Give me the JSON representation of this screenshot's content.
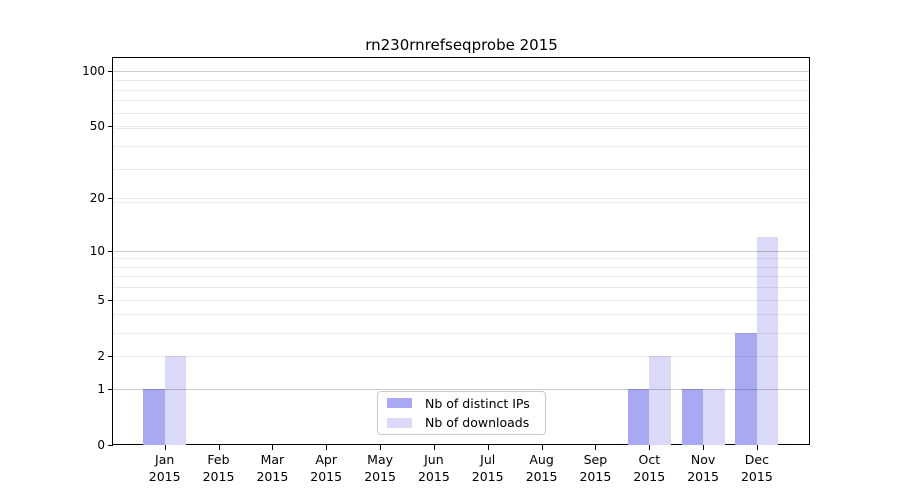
{
  "title": "rn230rnrefseqprobe 2015",
  "chart_data": {
    "type": "bar",
    "title": "rn230rnrefseqprobe 2015",
    "categories": [
      "Jan\n2015",
      "Feb\n2015",
      "Mar\n2015",
      "Apr\n2015",
      "May\n2015",
      "Jun\n2015",
      "Jul\n2015",
      "Aug\n2015",
      "Sep\n2015",
      "Oct\n2015",
      "Nov\n2015",
      "Dec\n2015"
    ],
    "series": [
      {
        "name": "Nb of distinct IPs",
        "color": "#a9a9f3",
        "values": [
          1,
          0,
          0,
          0,
          0,
          0,
          0,
          0,
          0,
          1,
          1,
          3
        ]
      },
      {
        "name": "Nb of downloads",
        "color": "#dadaf8",
        "values": [
          2,
          0,
          0,
          0,
          0,
          0,
          0,
          0,
          0,
          2,
          1,
          12
        ]
      }
    ],
    "yscale": "log1p",
    "yticks": [
      0,
      1,
      2,
      5,
      10,
      20,
      50,
      100
    ],
    "ylim": [
      0,
      121
    ],
    "xlabel": "",
    "ylabel": "",
    "grid": "horizontal",
    "legend_position": "lower center",
    "colors": {
      "major_gridline": "#cccccc",
      "minor_gridline": "#ebebeb",
      "spine": "#000000",
      "background": "#ffffff"
    }
  }
}
